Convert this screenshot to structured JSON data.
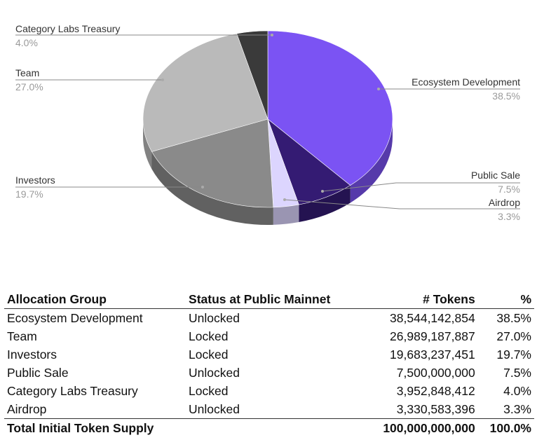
{
  "chart_data": {
    "type": "pie",
    "style": "3d",
    "slices": [
      {
        "label": "Ecosystem Development",
        "value": 38.5,
        "pct_label": "38.5%",
        "color": "#7b53f3"
      },
      {
        "label": "Public Sale",
        "value": 7.5,
        "pct_label": "7.5%",
        "color": "#341b73"
      },
      {
        "label": "Airdrop",
        "value": 3.3,
        "pct_label": "3.3%",
        "color": "#dcd5fe"
      },
      {
        "label": "Investors",
        "value": 19.7,
        "pct_label": "19.7%",
        "color": "#8a8a8a"
      },
      {
        "label": "Team",
        "value": 27.0,
        "pct_label": "27.0%",
        "color": "#bababa"
      },
      {
        "label": "Category Labs Treasury",
        "value": 4.0,
        "pct_label": "4.0%",
        "color": "#3a3a3a"
      }
    ]
  },
  "table": {
    "headers": [
      "Allocation Group",
      "Status at Public Mainnet",
      "# Tokens",
      "%"
    ],
    "rows": [
      [
        "Ecosystem Development",
        "Unlocked",
        "38,544,142,854",
        "38.5%"
      ],
      [
        "Team",
        "Locked",
        "26,989,187,887",
        "27.0%"
      ],
      [
        "Investors",
        "Locked",
        "19,683,237,451",
        "19.7%"
      ],
      [
        "Public Sale",
        "Unlocked",
        "7,500,000,000",
        "7.5%"
      ],
      [
        "Category Labs Treasury",
        "Locked",
        "3,952,848,412",
        "4.0%"
      ],
      [
        "Airdrop",
        "Unlocked",
        "3,330,583,396",
        "3.3%"
      ]
    ],
    "total": [
      "Total Initial Token Supply",
      "",
      "100,000,000,000",
      "100.0%"
    ]
  }
}
